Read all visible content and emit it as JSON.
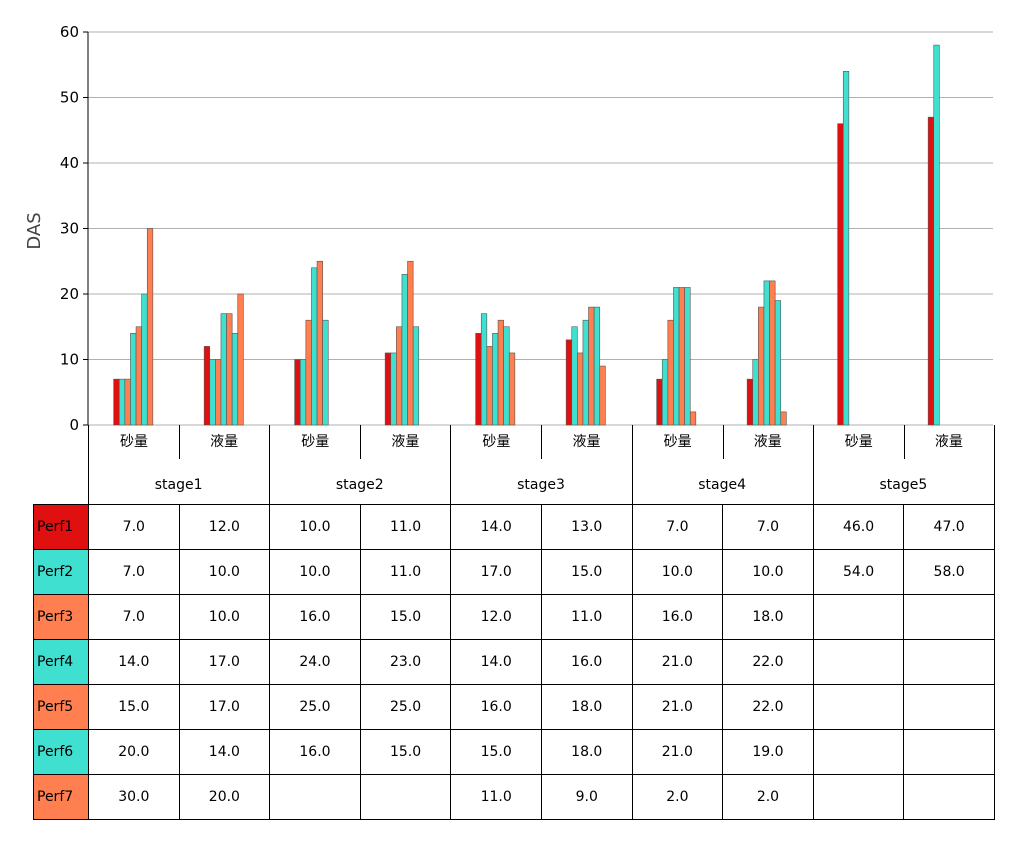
{
  "chart_data": {
    "type": "bar",
    "ylabel": "DAS",
    "xlabel": "",
    "ylim": [
      0,
      60
    ],
    "yticks": [
      0,
      10,
      20,
      30,
      40,
      50,
      60
    ],
    "grid": "horizontal",
    "groups": [
      "stage1",
      "stage2",
      "stage3",
      "stage4",
      "stage5"
    ],
    "subcategories": [
      "砂量",
      "液量"
    ],
    "categories": [
      "stage1 砂量",
      "stage1 液量",
      "stage2 砂量",
      "stage2 液量",
      "stage3 砂量",
      "stage3 液量",
      "stage4 砂量",
      "stage4 液量",
      "stage5 砂量",
      "stage5 液量"
    ],
    "series": [
      {
        "name": "Perf1",
        "color": "#e01010",
        "values": [
          7.0,
          12.0,
          10.0,
          11.0,
          14.0,
          13.0,
          7.0,
          7.0,
          46.0,
          47.0
        ]
      },
      {
        "name": "Perf2",
        "color": "#40e0d0",
        "values": [
          7.0,
          10.0,
          10.0,
          11.0,
          17.0,
          15.0,
          10.0,
          10.0,
          54.0,
          58.0
        ]
      },
      {
        "name": "Perf3",
        "color": "#ff7f50",
        "values": [
          7.0,
          10.0,
          16.0,
          15.0,
          12.0,
          11.0,
          16.0,
          18.0,
          null,
          null
        ]
      },
      {
        "name": "Perf4",
        "color": "#40e0d0",
        "values": [
          14.0,
          17.0,
          24.0,
          23.0,
          14.0,
          16.0,
          21.0,
          22.0,
          null,
          null
        ]
      },
      {
        "name": "Perf5",
        "color": "#ff7f50",
        "values": [
          15.0,
          17.0,
          25.0,
          25.0,
          16.0,
          18.0,
          21.0,
          22.0,
          null,
          null
        ]
      },
      {
        "name": "Perf6",
        "color": "#40e0d0",
        "values": [
          20.0,
          14.0,
          16.0,
          15.0,
          15.0,
          18.0,
          21.0,
          19.0,
          null,
          null
        ]
      },
      {
        "name": "Perf7",
        "color": "#ff7f50",
        "values": [
          30.0,
          20.0,
          null,
          null,
          11.0,
          9.0,
          2.0,
          2.0,
          null,
          null
        ]
      }
    ]
  }
}
